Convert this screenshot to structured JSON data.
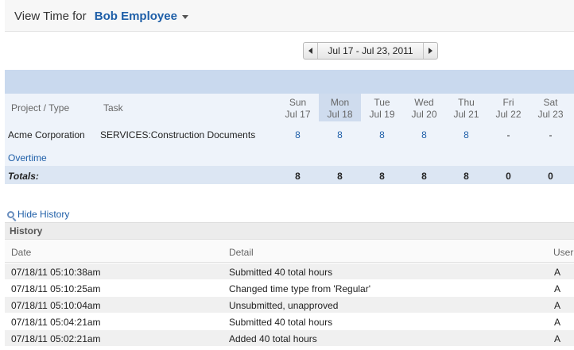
{
  "header": {
    "prefix": "View Time for",
    "employee": "Bob Employee"
  },
  "date_nav": {
    "range": "Jul 17 - Jul 23, 2011"
  },
  "timesheet": {
    "col_project": "Project / Type",
    "col_task": "Task",
    "days": [
      {
        "dow": "Sun",
        "date": "Jul 17"
      },
      {
        "dow": "Mon",
        "date": "Jul 18"
      },
      {
        "dow": "Tue",
        "date": "Jul 19"
      },
      {
        "dow": "Wed",
        "date": "Jul 20"
      },
      {
        "dow": "Thu",
        "date": "Jul 21"
      },
      {
        "dow": "Fri",
        "date": "Jul 22"
      },
      {
        "dow": "Sat",
        "date": "Jul 23"
      }
    ],
    "row": {
      "project": "Acme Corporation",
      "task": "SERVICES:Construction Documents",
      "values": [
        "8",
        "8",
        "8",
        "8",
        "8",
        "-",
        "-"
      ]
    },
    "overtime_label": "Overtime",
    "totals_label": "Totals:",
    "totals": [
      "8",
      "8",
      "8",
      "8",
      "8",
      "0",
      "0"
    ]
  },
  "history": {
    "toggle_label": "Hide History",
    "title": "History",
    "columns": {
      "date": "Date",
      "detail": "Detail",
      "user": "User"
    },
    "rows": [
      {
        "date": "07/18/11 05:10:38am",
        "detail": "Submitted 40 total hours",
        "user": "A"
      },
      {
        "date": "07/18/11 05:10:25am",
        "detail": "Changed time type from 'Regular'",
        "user": "A"
      },
      {
        "date": "07/18/11 05:10:04am",
        "detail": "Unsubmitted, unapproved",
        "user": "A"
      },
      {
        "date": "07/18/11 05:04:21am",
        "detail": "Submitted 40 total hours",
        "user": "A"
      },
      {
        "date": "07/18/11 05:02:21am",
        "detail": "Added 40 total hours",
        "user": "A"
      }
    ]
  }
}
